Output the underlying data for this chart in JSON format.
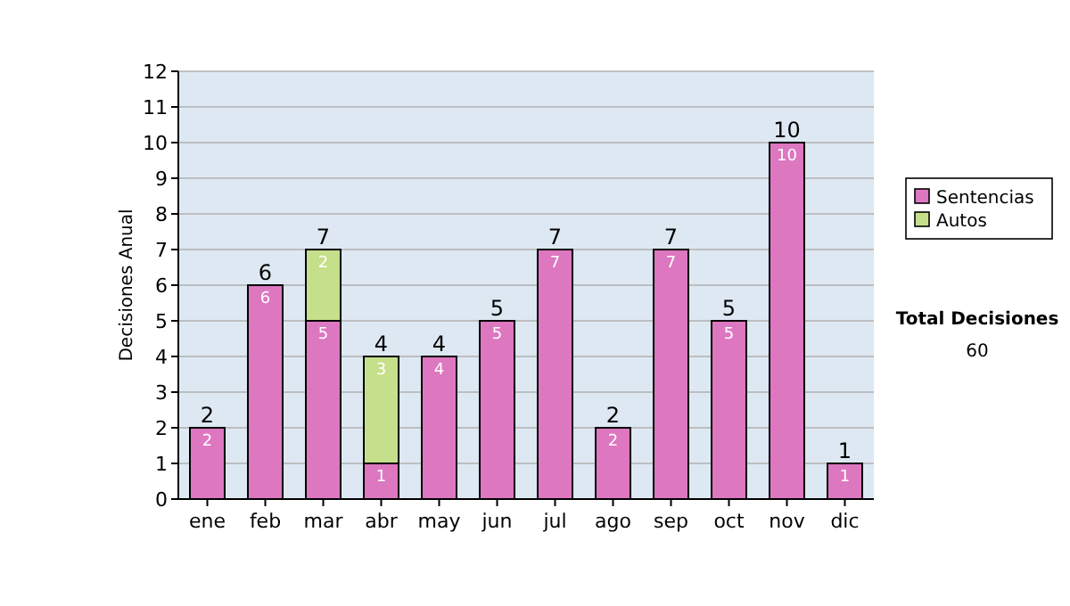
{
  "chart_data": {
    "type": "bar",
    "stacked": true,
    "ylabel": "Decisiones Anual",
    "categories": [
      "ene",
      "feb",
      "mar",
      "abr",
      "may",
      "jun",
      "jul",
      "ago",
      "sep",
      "oct",
      "nov",
      "dic"
    ],
    "series": [
      {
        "name": "Sentencias",
        "color": "#dd77c0",
        "values": [
          2,
          6,
          5,
          1,
          4,
          5,
          7,
          2,
          7,
          5,
          10,
          1
        ],
        "value_labels": [
          "2",
          "6",
          "5",
          "1",
          "4",
          "5",
          "7",
          "2",
          "7",
          "5",
          "10",
          "1"
        ]
      },
      {
        "name": "Autos",
        "color": "#c6df8a",
        "values": [
          0,
          0,
          2,
          3,
          0,
          0,
          0,
          0,
          0,
          0,
          0,
          0
        ],
        "value_labels": [
          null,
          null,
          "2",
          "3",
          null,
          null,
          null,
          null,
          null,
          null,
          null,
          null
        ]
      }
    ],
    "totals": [
      "2",
      "6",
      "7",
      "4",
      "4",
      "5",
      "7",
      "2",
      "7",
      "5",
      "10",
      "1"
    ],
    "ylim": [
      0,
      12
    ],
    "yticks": [
      0,
      1,
      2,
      3,
      4,
      5,
      6,
      7,
      8,
      9,
      10,
      11,
      12
    ],
    "grid": "y",
    "legend": "right",
    "annotations": [
      "Total Decisiones",
      "60"
    ]
  }
}
